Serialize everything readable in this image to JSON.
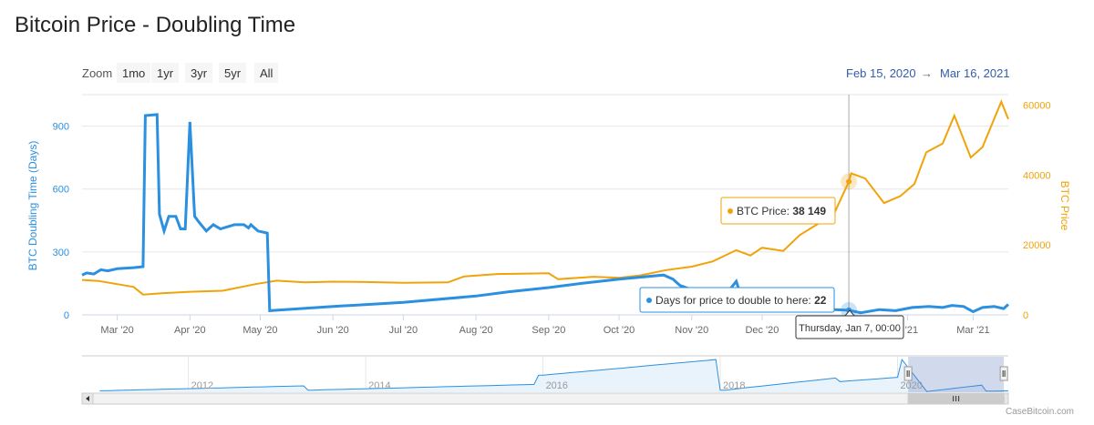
{
  "page_title": "Bitcoin Price - Doubling Time",
  "zoom": {
    "label": "Zoom",
    "buttons": [
      "1mo",
      "1yr",
      "3yr",
      "5yr",
      "All"
    ]
  },
  "range": {
    "from": "Feb 15, 2020",
    "arrow": "→",
    "to": "Mar 16, 2021"
  },
  "credit": "CaseBitcoin.com",
  "tooltips": {
    "price_label": "BTC Price:",
    "price_value": "38 149",
    "doubling_label": "Days for price to double to here:",
    "doubling_value": "22",
    "date_label": "Thursday, Jan 7, 00:00"
  },
  "colors": {
    "doubling": "#2b90e0",
    "price": "#f0a30a",
    "axis_left": "#2b90e0",
    "axis_right": "#f0a30a"
  },
  "chart_data": {
    "type": "line",
    "title": "Bitcoin Price - Doubling Time",
    "xlabel": "",
    "x_ticks": [
      "Mar '20",
      "Apr '20",
      "May '20",
      "Jun '20",
      "Jul '20",
      "Aug '20",
      "Sep '20",
      "Oct '20",
      "Nov '20",
      "Dec '20",
      "Jan '21",
      "Feb '21",
      "Mar '21"
    ],
    "x_tick_labels_visible": [
      "Mar '20",
      "Apr '20",
      "May '20",
      "Jun '20",
      "Jul '20",
      "Aug '20",
      "Sep '20",
      "Oct '20",
      "Nov '20",
      "Dec '20",
      "",
      "b '21",
      "Mar '21"
    ],
    "xlim": [
      "2020-02-15",
      "2021-03-16"
    ],
    "y_left": {
      "label": "BTC Doubling Time (Days)",
      "lim": [
        0,
        1050
      ],
      "ticks": [
        0,
        300,
        600,
        900
      ]
    },
    "y_right": {
      "label": "BTC Price",
      "lim": [
        0,
        63000
      ],
      "ticks": [
        0,
        20000,
        40000,
        60000
      ],
      "tick_labels": [
        "0",
        "20000",
        "40000",
        "60000"
      ]
    },
    "grid": true,
    "crosshair_date": "2021-01-07",
    "series": [
      {
        "name": "Days for price to double to here",
        "axis": "left",
        "points": [
          [
            "2020-02-15",
            190
          ],
          [
            "2020-02-17",
            200
          ],
          [
            "2020-02-20",
            195
          ],
          [
            "2020-02-23",
            215
          ],
          [
            "2020-02-26",
            210
          ],
          [
            "2020-03-01",
            220
          ],
          [
            "2020-03-08",
            225
          ],
          [
            "2020-03-12",
            230
          ],
          [
            "2020-03-13",
            950
          ],
          [
            "2020-03-18",
            955
          ],
          [
            "2020-03-19",
            480
          ],
          [
            "2020-03-21",
            400
          ],
          [
            "2020-03-23",
            470
          ],
          [
            "2020-03-26",
            470
          ],
          [
            "2020-03-28",
            410
          ],
          [
            "2020-03-30",
            410
          ],
          [
            "2020-04-01",
            920
          ],
          [
            "2020-04-03",
            470
          ],
          [
            "2020-04-05",
            440
          ],
          [
            "2020-04-08",
            400
          ],
          [
            "2020-04-11",
            430
          ],
          [
            "2020-04-14",
            410
          ],
          [
            "2020-04-17",
            420
          ],
          [
            "2020-04-20",
            430
          ],
          [
            "2020-04-24",
            430
          ],
          [
            "2020-04-26",
            415
          ],
          [
            "2020-04-27",
            430
          ],
          [
            "2020-04-30",
            400
          ],
          [
            "2020-05-04",
            390
          ],
          [
            "2020-05-05",
            20
          ],
          [
            "2020-06-01",
            40
          ],
          [
            "2020-07-01",
            60
          ],
          [
            "2020-08-01",
            90
          ],
          [
            "2020-08-15",
            110
          ],
          [
            "2020-09-01",
            130
          ],
          [
            "2020-09-15",
            150
          ],
          [
            "2020-10-01",
            170
          ],
          [
            "2020-10-20",
            190
          ],
          [
            "2020-10-24",
            170
          ],
          [
            "2020-10-27",
            140
          ],
          [
            "2020-11-01",
            120
          ],
          [
            "2020-11-05",
            100
          ],
          [
            "2020-11-15",
            90
          ],
          [
            "2020-11-20",
            160
          ],
          [
            "2020-11-22",
            90
          ],
          [
            "2020-12-01",
            80
          ],
          [
            "2020-12-10",
            60
          ],
          [
            "2020-12-20",
            40
          ],
          [
            "2021-01-01",
            25
          ],
          [
            "2021-01-07",
            22
          ],
          [
            "2021-01-12",
            10
          ],
          [
            "2021-01-20",
            25
          ],
          [
            "2021-01-27",
            20
          ],
          [
            "2021-02-03",
            35
          ],
          [
            "2021-02-10",
            40
          ],
          [
            "2021-02-16",
            35
          ],
          [
            "2021-02-20",
            45
          ],
          [
            "2021-02-25",
            40
          ],
          [
            "2021-03-01",
            15
          ],
          [
            "2021-03-05",
            35
          ],
          [
            "2021-03-10",
            40
          ],
          [
            "2021-03-14",
            30
          ],
          [
            "2021-03-16",
            50
          ]
        ]
      },
      {
        "name": "BTC Price",
        "axis": "right",
        "points": [
          [
            "2020-02-15",
            10000
          ],
          [
            "2020-02-22",
            9700
          ],
          [
            "2020-03-01",
            8800
          ],
          [
            "2020-03-08",
            8000
          ],
          [
            "2020-03-12",
            5800
          ],
          [
            "2020-03-20",
            6200
          ],
          [
            "2020-04-01",
            6600
          ],
          [
            "2020-04-15",
            6900
          ],
          [
            "2020-04-29",
            8800
          ],
          [
            "2020-05-08",
            9800
          ],
          [
            "2020-05-20",
            9300
          ],
          [
            "2020-06-01",
            9500
          ],
          [
            "2020-06-15",
            9400
          ],
          [
            "2020-07-01",
            9200
          ],
          [
            "2020-07-20",
            9300
          ],
          [
            "2020-07-27",
            11000
          ],
          [
            "2020-08-10",
            11700
          ],
          [
            "2020-08-20",
            11800
          ],
          [
            "2020-09-01",
            11900
          ],
          [
            "2020-09-05",
            10200
          ],
          [
            "2020-09-20",
            10900
          ],
          [
            "2020-10-01",
            10600
          ],
          [
            "2020-10-10",
            11300
          ],
          [
            "2020-10-21",
            12800
          ],
          [
            "2020-11-01",
            13800
          ],
          [
            "2020-11-10",
            15300
          ],
          [
            "2020-11-20",
            18500
          ],
          [
            "2020-11-26",
            17000
          ],
          [
            "2020-12-01",
            19200
          ],
          [
            "2020-12-10",
            18300
          ],
          [
            "2020-12-17",
            22800
          ],
          [
            "2020-12-26",
            26500
          ],
          [
            "2021-01-01",
            29400
          ],
          [
            "2021-01-07",
            38149
          ],
          [
            "2021-01-08",
            40500
          ],
          [
            "2021-01-14",
            39000
          ],
          [
            "2021-01-22",
            32000
          ],
          [
            "2021-01-29",
            34000
          ],
          [
            "2021-02-04",
            37500
          ],
          [
            "2021-02-09",
            46500
          ],
          [
            "2021-02-16",
            49000
          ],
          [
            "2021-02-21",
            57000
          ],
          [
            "2021-02-28",
            45000
          ],
          [
            "2021-03-05",
            48000
          ],
          [
            "2021-03-13",
            61000
          ],
          [
            "2021-03-16",
            56000
          ]
        ]
      }
    ],
    "navigator": {
      "x_ticks": [
        "2012",
        "2014",
        "2016",
        "2018",
        "2020"
      ],
      "selection": [
        "2020-02-15",
        "2021-03-16"
      ]
    }
  }
}
